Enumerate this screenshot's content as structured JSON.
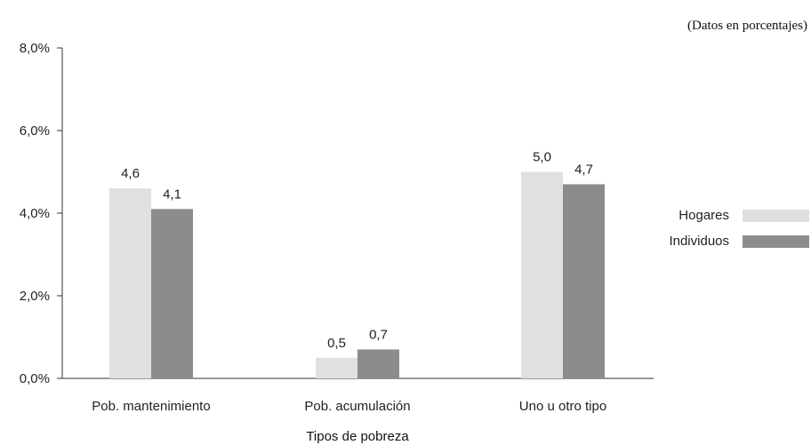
{
  "chart_data": {
    "type": "bar",
    "note": "(Datos en porcentajes)",
    "xlabel": "Tipos de pobreza",
    "ylabel": "",
    "categories": [
      "Pob. mantenimiento",
      "Pob. acumulación",
      "Uno u otro tipo"
    ],
    "series": [
      {
        "name": "Hogares",
        "values": [
          4.6,
          0.5,
          5.0
        ],
        "labels": [
          "4,6",
          "0,5",
          "5,0"
        ],
        "color": "#e0e0e0"
      },
      {
        "name": "Individuos",
        "values": [
          4.1,
          0.7,
          4.7
        ],
        "labels": [
          "4,1",
          "0,7",
          "4,7"
        ],
        "color": "#8c8c8c"
      }
    ],
    "ylim": [
      0,
      8
    ],
    "yticks": [
      0,
      2,
      4,
      6,
      8
    ],
    "ytick_labels": [
      "0,0%",
      "2,0%",
      "4,0%",
      "6,0%",
      "8,0%"
    ],
    "grid": false,
    "legend": "right"
  }
}
